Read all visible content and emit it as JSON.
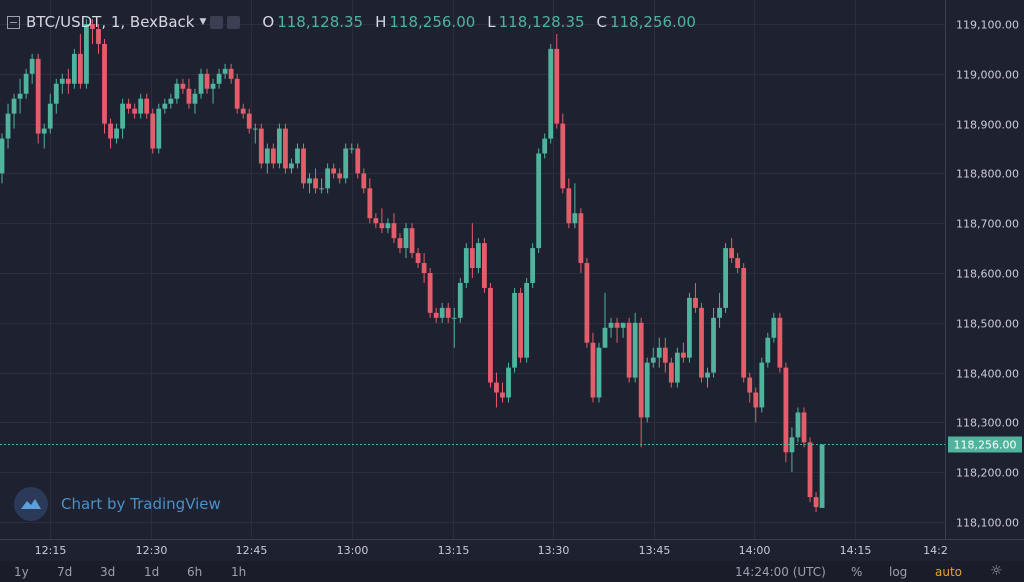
{
  "header": {
    "symbol": "BTC/USDT, 1, BexBack",
    "open_label": "O",
    "open_value": "118,128.35",
    "high_label": "H",
    "high_value": "118,256.00",
    "low_label": "L",
    "low_value": "118,128.35",
    "close_label": "C",
    "close_value": "118,256.00"
  },
  "branding": {
    "text": "Chart by TradingView"
  },
  "bottom_bar": {
    "ranges": [
      "1y",
      "7d",
      "3d",
      "1d",
      "6h",
      "1h"
    ],
    "clock": "14:24:00 (UTC)",
    "percent": "%",
    "log": "log",
    "auto": "auto"
  },
  "colors": {
    "up": "#4fb39d",
    "down": "#e35d6a",
    "background": "#1e2130",
    "last_price": "#4fb39d"
  },
  "chart_data": {
    "type": "candlestick",
    "timeframe": "1m",
    "ylim": [
      118070,
      119140
    ],
    "y_ticks": [
      118100,
      118200,
      118300,
      118400,
      118500,
      118600,
      118700,
      118800,
      118900,
      119000,
      119100
    ],
    "y_tick_labels": [
      "118,100.00",
      "118,200.00",
      "118,300.00",
      "118,400.00",
      "118,500.00",
      "118,600.00",
      "118,700.00",
      "118,800.00",
      "118,900.00",
      "119,000.00",
      "119,100.00"
    ],
    "x_ticks": [
      "12:15",
      "12:30",
      "12:45",
      "13:00",
      "13:15",
      "13:30",
      "13:45",
      "14:00",
      "14:15",
      "14:2"
    ],
    "last_price": 118256,
    "last_price_label": "118,256.00",
    "start_time": "12:10",
    "candles": [
      [
        118800,
        118880,
        118780,
        118870
      ],
      [
        118870,
        118940,
        118850,
        118920
      ],
      [
        118920,
        118960,
        118890,
        118950
      ],
      [
        118950,
        118990,
        118920,
        118960
      ],
      [
        118960,
        119010,
        118950,
        119000
      ],
      [
        119000,
        119040,
        118980,
        119030
      ],
      [
        119030,
        119040,
        118860,
        118880
      ],
      [
        118880,
        118900,
        118850,
        118890
      ],
      [
        118890,
        118960,
        118880,
        118940
      ],
      [
        118940,
        118990,
        118920,
        118980
      ],
      [
        118980,
        119000,
        118960,
        118990
      ],
      [
        118990,
        119010,
        118960,
        118980
      ],
      [
        118980,
        119050,
        118970,
        119040
      ],
      [
        119040,
        119080,
        118970,
        118980
      ],
      [
        118980,
        119110,
        118970,
        119100
      ],
      [
        119100,
        119110,
        119060,
        119090
      ],
      [
        119090,
        119100,
        119040,
        119060
      ],
      [
        119060,
        119070,
        118880,
        118900
      ],
      [
        118900,
        118910,
        118850,
        118870
      ],
      [
        118870,
        118900,
        118860,
        118890
      ],
      [
        118890,
        118950,
        118870,
        118940
      ],
      [
        118940,
        118950,
        118920,
        118930
      ],
      [
        118930,
        118940,
        118910,
        118920
      ],
      [
        118920,
        118960,
        118910,
        118950
      ],
      [
        118950,
        118960,
        118910,
        118920
      ],
      [
        118920,
        118930,
        118840,
        118850
      ],
      [
        118850,
        118940,
        118840,
        118930
      ],
      [
        118930,
        118950,
        118920,
        118940
      ],
      [
        118940,
        118960,
        118930,
        118950
      ],
      [
        118950,
        118990,
        118940,
        118980
      ],
      [
        118980,
        118990,
        118960,
        118970
      ],
      [
        118970,
        118990,
        118930,
        118940
      ],
      [
        118940,
        118970,
        118920,
        118960
      ],
      [
        118960,
        119010,
        118950,
        119000
      ],
      [
        119000,
        119010,
        118960,
        118970
      ],
      [
        118970,
        118990,
        118940,
        118980
      ],
      [
        118980,
        119010,
        118970,
        119000
      ],
      [
        119000,
        119020,
        118990,
        119010
      ],
      [
        119010,
        119020,
        118980,
        118990
      ],
      [
        118990,
        119000,
        118920,
        118930
      ],
      [
        118930,
        118940,
        118910,
        118920
      ],
      [
        118920,
        118930,
        118880,
        118890
      ],
      [
        118890,
        118900,
        118860,
        118890
      ],
      [
        118890,
        118900,
        118810,
        118820
      ],
      [
        118820,
        118860,
        118800,
        118850
      ],
      [
        118850,
        118860,
        118810,
        118820
      ],
      [
        118820,
        118900,
        118810,
        118890
      ],
      [
        118890,
        118900,
        118800,
        118810
      ],
      [
        118810,
        118830,
        118800,
        118820
      ],
      [
        118820,
        118860,
        118810,
        118850
      ],
      [
        118850,
        118860,
        118770,
        118780
      ],
      [
        118780,
        118800,
        118760,
        118790
      ],
      [
        118790,
        118810,
        118760,
        118770
      ],
      [
        118770,
        118790,
        118760,
        118770
      ],
      [
        118770,
        118820,
        118760,
        118810
      ],
      [
        118810,
        118820,
        118790,
        118800
      ],
      [
        118800,
        118810,
        118780,
        118790
      ],
      [
        118790,
        118860,
        118780,
        118850
      ],
      [
        118850,
        118860,
        118840,
        118850
      ],
      [
        118850,
        118860,
        118790,
        118800
      ],
      [
        118800,
        118810,
        118760,
        118770
      ],
      [
        118770,
        118790,
        118700,
        118710
      ],
      [
        118710,
        118720,
        118690,
        118700
      ],
      [
        118700,
        118730,
        118680,
        118690
      ],
      [
        118690,
        118710,
        118680,
        118700
      ],
      [
        118700,
        118720,
        118660,
        118670
      ],
      [
        118670,
        118680,
        118640,
        118650
      ],
      [
        118650,
        118700,
        118630,
        118690
      ],
      [
        118690,
        118700,
        118630,
        118640
      ],
      [
        118640,
        118650,
        118610,
        118620
      ],
      [
        118620,
        118640,
        118580,
        118600
      ],
      [
        118600,
        118610,
        118510,
        118520
      ],
      [
        118520,
        118530,
        118500,
        118510
      ],
      [
        118510,
        118540,
        118500,
        118530
      ],
      [
        118530,
        118540,
        118500,
        118510
      ],
      [
        118510,
        118530,
        118450,
        118510
      ],
      [
        118510,
        118590,
        118500,
        118580
      ],
      [
        118580,
        118660,
        118570,
        118650
      ],
      [
        118650,
        118700,
        118590,
        118610
      ],
      [
        118610,
        118670,
        118600,
        118660
      ],
      [
        118660,
        118670,
        118560,
        118570
      ],
      [
        118570,
        118580,
        118370,
        118380
      ],
      [
        118380,
        118400,
        118330,
        118360
      ],
      [
        118360,
        118380,
        118340,
        118350
      ],
      [
        118350,
        118420,
        118340,
        118410
      ],
      [
        118410,
        118570,
        118400,
        118560
      ],
      [
        118560,
        118570,
        118420,
        118430
      ],
      [
        118430,
        118590,
        118420,
        118580
      ],
      [
        118580,
        118660,
        118570,
        118650
      ],
      [
        118650,
        118850,
        118640,
        118840
      ],
      [
        118840,
        118880,
        118830,
        118870
      ],
      [
        118870,
        119060,
        118860,
        119050
      ],
      [
        119050,
        119080,
        118890,
        118900
      ],
      [
        118900,
        118920,
        118760,
        118770
      ],
      [
        118770,
        118790,
        118690,
        118700
      ],
      [
        118700,
        118780,
        118690,
        118720
      ],
      [
        118720,
        118730,
        118600,
        118620
      ],
      [
        118620,
        118630,
        118450,
        118460
      ],
      [
        118460,
        118480,
        118340,
        118350
      ],
      [
        118350,
        118460,
        118340,
        118450
      ],
      [
        118450,
        118560,
        118450,
        118490
      ],
      [
        118490,
        118510,
        118470,
        118500
      ],
      [
        118500,
        118510,
        118460,
        118490
      ],
      [
        118490,
        118500,
        118470,
        118500
      ],
      [
        118500,
        118510,
        118380,
        118390
      ],
      [
        118390,
        118520,
        118380,
        118500
      ],
      [
        118500,
        118510,
        118250,
        118310
      ],
      [
        118310,
        118430,
        118300,
        118420
      ],
      [
        118420,
        118450,
        118410,
        118430
      ],
      [
        118430,
        118470,
        118410,
        118450
      ],
      [
        118450,
        118470,
        118400,
        118420
      ],
      [
        118420,
        118430,
        118370,
        118380
      ],
      [
        118380,
        118450,
        118370,
        118440
      ],
      [
        118440,
        118460,
        118420,
        118430
      ],
      [
        118430,
        118560,
        118420,
        118550
      ],
      [
        118550,
        118580,
        118520,
        118530
      ],
      [
        118530,
        118540,
        118380,
        118390
      ],
      [
        118390,
        118410,
        118370,
        118400
      ],
      [
        118400,
        118530,
        118390,
        118510
      ],
      [
        118510,
        118560,
        118490,
        118530
      ],
      [
        118530,
        118660,
        118520,
        118650
      ],
      [
        118650,
        118670,
        118620,
        118630
      ],
      [
        118630,
        118640,
        118600,
        118610
      ],
      [
        118610,
        118620,
        118380,
        118390
      ],
      [
        118390,
        118400,
        118340,
        118360
      ],
      [
        118360,
        118370,
        118300,
        118330
      ],
      [
        118330,
        118430,
        118320,
        118420
      ],
      [
        118420,
        118480,
        118410,
        118470
      ],
      [
        118470,
        118520,
        118460,
        118510
      ],
      [
        118510,
        118520,
        118400,
        118410
      ],
      [
        118410,
        118420,
        118220,
        118240
      ],
      [
        118240,
        118290,
        118200,
        118270
      ],
      [
        118270,
        118330,
        118260,
        118320
      ],
      [
        118320,
        118330,
        118250,
        118260
      ],
      [
        118260,
        118270,
        118140,
        118150
      ],
      [
        118150,
        118160,
        118120,
        118130
      ],
      [
        118128.35,
        118256,
        118128.35,
        118256
      ]
    ]
  }
}
